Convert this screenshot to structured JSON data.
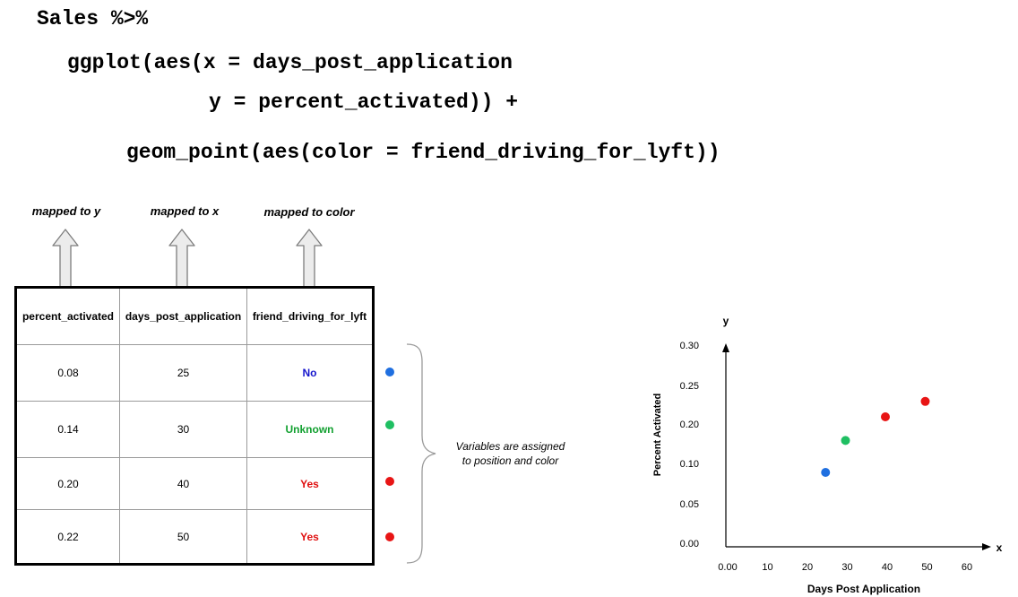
{
  "code": {
    "line1": "Sales %>%",
    "line2": "ggplot(aes(x = days_post_application",
    "line3": "y = percent_activated)) +",
    "line4": "geom_point(aes(color = friend_driving_for_lyft))"
  },
  "mappings": [
    {
      "label": "mapped to y"
    },
    {
      "label": "mapped to x"
    },
    {
      "label": "mapped to color"
    }
  ],
  "table": {
    "headers": [
      "percent_activated",
      "days_post_application",
      "friend_driving_for_lyft"
    ],
    "rows": [
      {
        "percent_activated": "0.08",
        "days_post_application": "25",
        "friend": "No",
        "friend_color": "#1515cc",
        "dot_color": "#1f6fe0"
      },
      {
        "percent_activated": "0.14",
        "days_post_application": "30",
        "friend": "Unknown",
        "friend_color": "#12a030",
        "dot_color": "#1fbf62"
      },
      {
        "percent_activated": "0.20",
        "days_post_application": "40",
        "friend": "Yes",
        "friend_color": "#e01010",
        "dot_color": "#e81515"
      },
      {
        "percent_activated": "0.22",
        "days_post_application": "50",
        "friend": "Yes",
        "friend_color": "#e01010",
        "dot_color": "#e81515"
      }
    ]
  },
  "brace_note": {
    "line1": "Variables are assigned",
    "line2": "to position and color"
  },
  "chart_data": {
    "type": "scatter",
    "xlabel": "Days Post Application",
    "ylabel": "Percent Activated",
    "x_axis_letter": "x",
    "y_axis_letter": "y",
    "xlim": [
      0,
      60
    ],
    "x_ticks": [
      {
        "value": 0,
        "label": "0.00"
      },
      {
        "value": 10,
        "label": "10"
      },
      {
        "value": 20,
        "label": "20"
      },
      {
        "value": 30,
        "label": "30"
      },
      {
        "value": 40,
        "label": "40"
      },
      {
        "value": 50,
        "label": "50"
      },
      {
        "value": 60,
        "label": "60"
      }
    ],
    "y_ticks": [
      "0.00",
      "0.05",
      "0.10",
      "0.20",
      "0.25",
      "0.30"
    ],
    "grid": false,
    "points": [
      {
        "x": 25,
        "y": 0.08,
        "color": "#1f6fe0"
      },
      {
        "x": 30,
        "y": 0.14,
        "color": "#1fbf62"
      },
      {
        "x": 40,
        "y": 0.2,
        "color": "#e81515"
      },
      {
        "x": 50,
        "y": 0.22,
        "color": "#e81515"
      }
    ]
  }
}
